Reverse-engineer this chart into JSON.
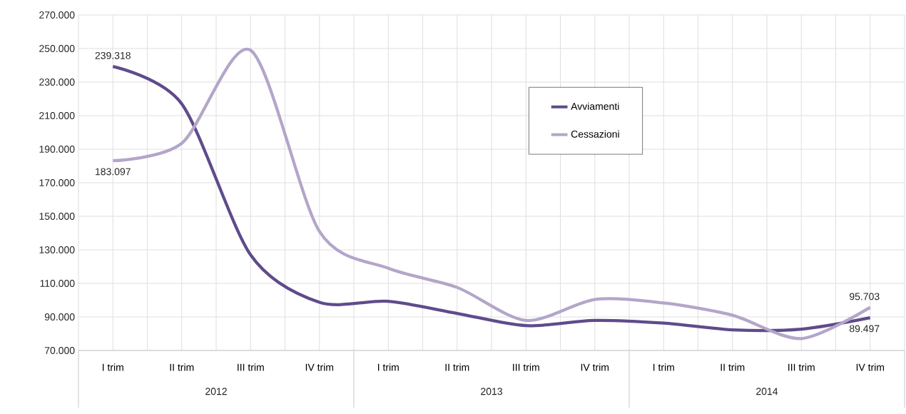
{
  "chart_data": {
    "type": "line",
    "categories": [
      "I trim",
      "II trim",
      "III trim",
      "IV trim",
      "I trim",
      "II trim",
      "III trim",
      "IV trim",
      "I trim",
      "II trim",
      "III trim",
      "IV trim"
    ],
    "series": [
      {
        "name": "Avviamenti",
        "color": "#5f4b8b",
        "values": [
          239318,
          217000,
          127000,
          98700,
          99300,
          92100,
          84800,
          87900,
          86300,
          82300,
          82700,
          89497
        ],
        "value_labels": [
          "239.318",
          null,
          null,
          null,
          null,
          null,
          null,
          null,
          null,
          null,
          null,
          "89.497"
        ]
      },
      {
        "name": "Cessazioni",
        "color": "#b3a6c9",
        "values": [
          183097,
          193500,
          249000,
          141000,
          119000,
          107600,
          87900,
          100400,
          98300,
          91000,
          77100,
          95703
        ],
        "value_labels": [
          "183.097",
          null,
          null,
          null,
          null,
          null,
          null,
          null,
          null,
          null,
          null,
          "95.703"
        ]
      }
    ],
    "annotations": [
      "2012",
      "2013",
      "2014"
    ],
    "ylim": [
      70000,
      270000
    ],
    "yticks": [
      {
        "value": 70000,
        "label": "70.000"
      },
      {
        "value": 90000,
        "label": "90.000"
      },
      {
        "value": 110000,
        "label": "110.000"
      },
      {
        "value": 130000,
        "label": "130.000"
      },
      {
        "value": 150000,
        "label": "150.000"
      },
      {
        "value": 170000,
        "label": "170.000"
      },
      {
        "value": 190000,
        "label": "190.000"
      },
      {
        "value": 210000,
        "label": "210.000"
      },
      {
        "value": 230000,
        "label": "230.000"
      },
      {
        "value": 250000,
        "label": "250.000"
      },
      {
        "value": 270000,
        "label": "270.000"
      }
    ],
    "grid": true,
    "legend": "top right",
    "marker": "none",
    "line_style": "solid"
  }
}
